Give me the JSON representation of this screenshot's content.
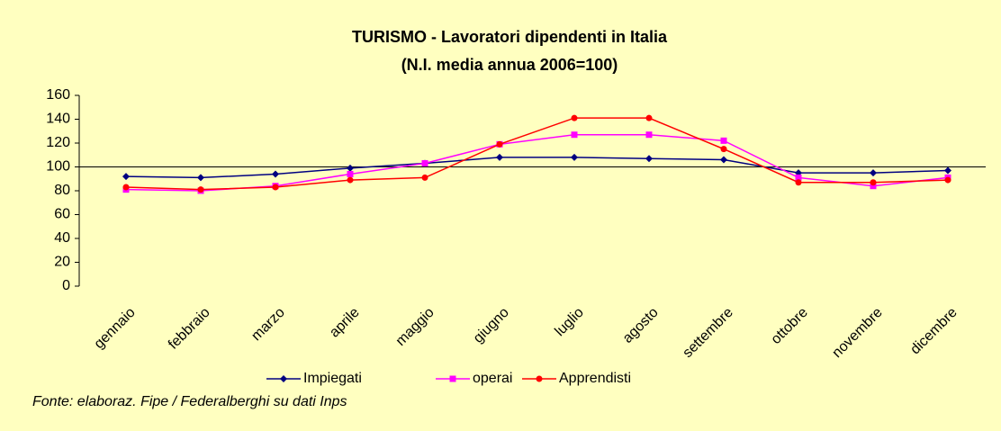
{
  "chart_data": {
    "type": "line",
    "title": "TURISMO - Lavoratori dipendenti in Italia",
    "subtitle": "(N.I. media annua 2006=100)",
    "source": "Fonte: elaboraz. Fipe / Federalberghi su dati Inps",
    "categories": [
      "gennaio",
      "febbraio",
      "marzo",
      "aprile",
      "maggio",
      "giugno",
      "luglio",
      "agosto",
      "settembre",
      "ottobre",
      "novembre",
      "dicembre"
    ],
    "series": [
      {
        "name": "Impiegati",
        "color": "#000080",
        "marker": "diamond",
        "values": [
          92,
          91,
          94,
          99,
          103,
          108,
          108,
          107,
          106,
          95,
          95,
          97
        ]
      },
      {
        "name": "operai",
        "color": "#ff00ff",
        "marker": "square",
        "values": [
          81,
          80,
          84,
          94,
          103,
          119,
          127,
          127,
          122,
          91,
          84,
          91
        ]
      },
      {
        "name": "Apprendisti",
        "color": "#ff0000",
        "marker": "circle",
        "values": [
          83,
          81,
          83,
          89,
          91,
          119,
          141,
          141,
          115,
          87,
          87,
          89
        ]
      }
    ],
    "ylim": [
      0,
      160
    ],
    "yticks": [
      0,
      20,
      40,
      60,
      80,
      100,
      120,
      140,
      160
    ],
    "reference_line": 100,
    "legend": "bottom",
    "background": "#ffffc0"
  }
}
